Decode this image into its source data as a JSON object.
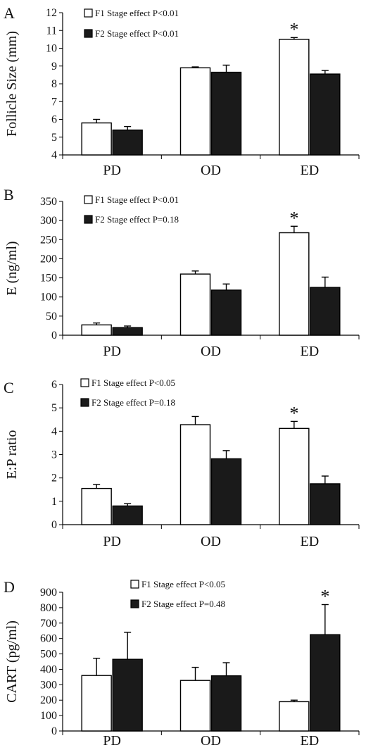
{
  "figure": {
    "panels": [
      {
        "letter": "A",
        "legend": [
          "F1 Stage effect P<0.01",
          "F2 Stage effect P<0.01"
        ]
      },
      {
        "letter": "B",
        "legend": [
          "F1 Stage effect P<0.01",
          "F2 Stage effect P=0.18"
        ]
      },
      {
        "letter": "C",
        "legend": [
          "F1 Stage effect P<0.05",
          "F2 Stage effect P=0.18"
        ]
      },
      {
        "letter": "D",
        "legend": [
          "F1 Stage effect P<0.05",
          "F2 Stage effect P=0.48"
        ]
      }
    ],
    "colors": {
      "f1_fill": "#ffffff",
      "f2_fill": "#1a1a1a",
      "stroke": "#000000"
    }
  },
  "chart_data": [
    {
      "type": "bar",
      "title": "",
      "ylabel": "Follicle Size (mm)",
      "categories": [
        "PD",
        "OD",
        "ED"
      ],
      "ylim": [
        4,
        12
      ],
      "yticks": [
        4,
        5,
        6,
        7,
        8,
        9,
        10,
        11,
        12
      ],
      "series": [
        {
          "name": "F1",
          "values": [
            5.8,
            8.9,
            10.5
          ],
          "errors": [
            0.2,
            0.05,
            0.1
          ]
        },
        {
          "name": "F2",
          "values": [
            5.4,
            8.65,
            8.55
          ],
          "errors": [
            0.2,
            0.4,
            0.2
          ]
        }
      ],
      "annotations": [
        {
          "category": "ED",
          "text": "*"
        }
      ],
      "legend_position": "top-center"
    },
    {
      "type": "bar",
      "title": "",
      "ylabel": "E (ng/ml)",
      "categories": [
        "PD",
        "OD",
        "ED"
      ],
      "ylim": [
        0,
        350
      ],
      "yticks": [
        0,
        50,
        100,
        150,
        200,
        250,
        300,
        350
      ],
      "series": [
        {
          "name": "F1",
          "values": [
            27,
            160,
            268
          ],
          "errors": [
            5,
            8,
            17
          ]
        },
        {
          "name": "F2",
          "values": [
            20,
            118,
            125
          ],
          "errors": [
            4,
            16,
            27
          ]
        }
      ],
      "annotations": [
        {
          "category": "ED",
          "text": "*"
        }
      ],
      "legend_position": "top-center"
    },
    {
      "type": "bar",
      "title": "",
      "ylabel": "E:P ratio",
      "categories": [
        "PD",
        "OD",
        "ED"
      ],
      "ylim": [
        0,
        6
      ],
      "yticks": [
        0,
        1,
        2,
        3,
        4,
        5,
        6
      ],
      "series": [
        {
          "name": "F1",
          "values": [
            1.55,
            4.28,
            4.12
          ],
          "errors": [
            0.17,
            0.35,
            0.3
          ]
        },
        {
          "name": "F2",
          "values": [
            0.8,
            2.82,
            1.75
          ],
          "errors": [
            0.1,
            0.35,
            0.33
          ]
        }
      ],
      "annotations": [
        {
          "category": "ED",
          "text": "*"
        }
      ],
      "legend_position": "top-center"
    },
    {
      "type": "bar",
      "title": "",
      "ylabel": "CART (pg/ml)",
      "categories": [
        "PD",
        "OD",
        "ED"
      ],
      "ylim": [
        0,
        900
      ],
      "yticks": [
        0,
        100,
        200,
        300,
        400,
        500,
        600,
        700,
        800,
        900
      ],
      "series": [
        {
          "name": "F1",
          "values": [
            360,
            328,
            190
          ],
          "errors": [
            112,
            85,
            10
          ]
        },
        {
          "name": "F2",
          "values": [
            465,
            358,
            625
          ],
          "errors": [
            175,
            85,
            195
          ]
        }
      ],
      "annotations": [
        {
          "category": "ED",
          "text": "*",
          "series": "F2"
        }
      ],
      "legend_position": "top-center"
    }
  ]
}
